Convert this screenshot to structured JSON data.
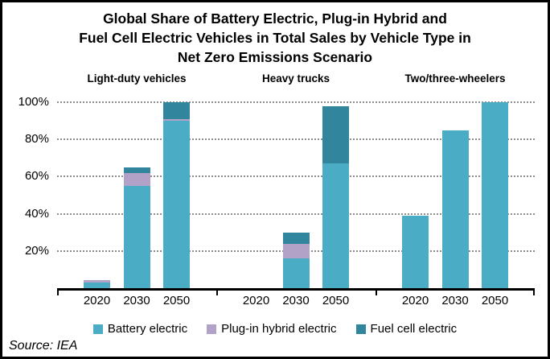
{
  "title": {
    "lines": [
      "Global Share of Battery Electric, Plug-in Hybrid and",
      "Fuel Cell Electric Vehicles in Total Sales by Vehicle Type in",
      "Net Zero Emissions Scenario"
    ]
  },
  "source": {
    "text": "Source: IEA"
  },
  "legend": {
    "items": [
      {
        "label": "Battery electric",
        "color": "#4BACC6"
      },
      {
        "label": "Plug-in hybrid electric",
        "color": "#B3A2C7"
      },
      {
        "label": "Fuel cell electric",
        "color": "#31859C"
      }
    ]
  },
  "chart_data": {
    "type": "bar",
    "stacked": true,
    "title": "Global Share of Battery Electric, Plug-in Hybrid and Fuel Cell Electric Vehicles in Total Sales by Vehicle Type in Net Zero Emissions Scenario",
    "ylim": [
      0,
      100
    ],
    "yticks": [
      {
        "value": 20,
        "label": "20%"
      },
      {
        "value": 40,
        "label": "40%"
      },
      {
        "value": 60,
        "label": "60%"
      },
      {
        "value": 80,
        "label": "80%"
      },
      {
        "value": 100,
        "label": "100%"
      }
    ],
    "gridlines": "dotted",
    "legend_position": "bottom",
    "series_colors": {
      "Battery electric": "#4BACC6",
      "Plug-in hybrid electric": "#B3A2C7",
      "Fuel cell electric": "#31859C"
    },
    "groups": [
      {
        "label": "Light-duty vehicles",
        "categories": [
          "2020",
          "2030",
          "2050"
        ],
        "series": [
          {
            "name": "Battery electric",
            "values": [
              3,
              55,
              90
            ]
          },
          {
            "name": "Plug-in hybrid electric",
            "values": [
              1.5,
              7,
              1
            ]
          },
          {
            "name": "Fuel cell electric",
            "values": [
              0,
              3,
              9
            ]
          }
        ]
      },
      {
        "label": "Heavy trucks",
        "categories": [
          "2020",
          "2030",
          "2050"
        ],
        "series": [
          {
            "name": "Battery electric",
            "values": [
              0,
              16,
              67
            ]
          },
          {
            "name": "Plug-in hybrid electric",
            "values": [
              0,
              8,
              0
            ]
          },
          {
            "name": "Fuel cell electric",
            "values": [
              0,
              6,
              31
            ]
          }
        ]
      },
      {
        "label": "Two/three-wheelers",
        "categories": [
          "2020",
          "2030",
          "2050"
        ],
        "series": [
          {
            "name": "Battery electric",
            "values": [
              39,
              85,
              100
            ]
          },
          {
            "name": "Plug-in hybrid electric",
            "values": [
              0,
              0,
              0
            ]
          },
          {
            "name": "Fuel cell electric",
            "values": [
              0,
              0,
              0
            ]
          }
        ]
      }
    ]
  }
}
